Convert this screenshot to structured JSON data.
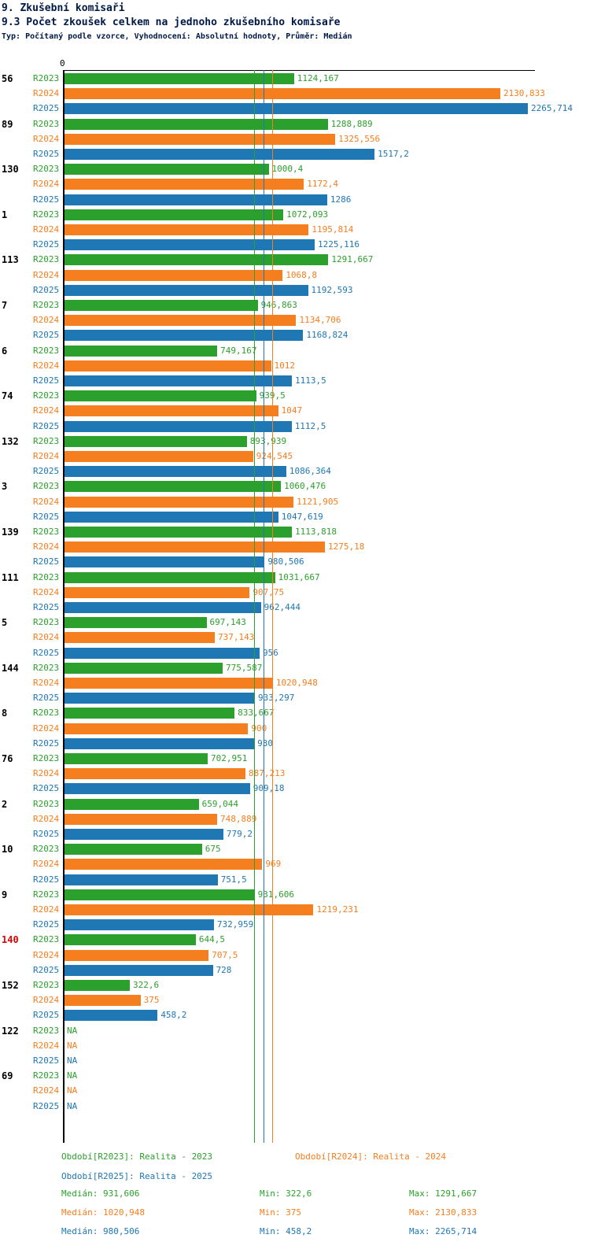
{
  "header": {
    "title": "9. Zkušební komisaři",
    "subtitle": "9.3 Počet zkoušek celkem na jednoho zkušebního komisaře",
    "meta": "Typ: Počítaný podle vzorce, Vyhodnocení: Absolutní hodnoty, Průměr: Medián"
  },
  "axis": {
    "zero_label": "0",
    "xlim": [
      0,
      2304
    ]
  },
  "colors": {
    "r2023": "#2ca02c",
    "r2024": "#f57e1e",
    "r2025": "#1f77b4",
    "highlight_red": "#e00000",
    "title_navy": "#001947"
  },
  "na_text": "NA",
  "chart_data": {
    "type": "bar",
    "orientation": "horizontal",
    "title": "9.3 Počet zkoušek celkem na jednoho zkušebního komisaře",
    "xlabel": "",
    "ylabel": "",
    "xlim": [
      0,
      2304
    ],
    "series_names": [
      "R2023",
      "R2024",
      "R2025"
    ],
    "groups": [
      {
        "label": "56",
        "red": false,
        "values": [
          1124.167,
          2130.833,
          2265.714
        ],
        "display": [
          "1124,167",
          "2130,833",
          "2265,714"
        ]
      },
      {
        "label": "89",
        "red": false,
        "values": [
          1288.889,
          1325.556,
          1517.2
        ],
        "display": [
          "1288,889",
          "1325,556",
          "1517,2"
        ]
      },
      {
        "label": "130",
        "red": false,
        "values": [
          1000.4,
          1172.4,
          1286
        ],
        "display": [
          "1000,4",
          "1172,4",
          "1286"
        ]
      },
      {
        "label": "1",
        "red": false,
        "values": [
          1072.093,
          1195.814,
          1225.116
        ],
        "display": [
          "1072,093",
          "1195,814",
          "1225,116"
        ]
      },
      {
        "label": "113",
        "red": false,
        "values": [
          1291.667,
          1068.8,
          1192.593
        ],
        "display": [
          "1291,667",
          "1068,8",
          "1192,593"
        ]
      },
      {
        "label": "7",
        "red": false,
        "values": [
          946.863,
          1134.706,
          1168.824
        ],
        "display": [
          "946,863",
          "1134,706",
          "1168,824"
        ]
      },
      {
        "label": "6",
        "red": false,
        "values": [
          749.167,
          1012,
          1113.5
        ],
        "display": [
          "749,167",
          "1012",
          "1113,5"
        ]
      },
      {
        "label": "74",
        "red": false,
        "values": [
          939.5,
          1047,
          1112.5
        ],
        "display": [
          "939,5",
          "1047",
          "1112,5"
        ]
      },
      {
        "label": "132",
        "red": false,
        "values": [
          893.939,
          924.545,
          1086.364
        ],
        "display": [
          "893,939",
          "924,545",
          "1086,364"
        ]
      },
      {
        "label": "3",
        "red": false,
        "values": [
          1060.476,
          1121.905,
          1047.619
        ],
        "display": [
          "1060,476",
          "1121,905",
          "1047,619"
        ]
      },
      {
        "label": "139",
        "red": false,
        "values": [
          1113.818,
          1275.18,
          980.506
        ],
        "display": [
          "1113,818",
          "1275,18",
          "980,506"
        ]
      },
      {
        "label": "111",
        "red": false,
        "values": [
          1031.667,
          907.75,
          962.444
        ],
        "display": [
          "1031,667",
          "907,75",
          "962,444"
        ]
      },
      {
        "label": "5",
        "red": false,
        "values": [
          697.143,
          737.143,
          956
        ],
        "display": [
          "697,143",
          "737,143",
          "956"
        ]
      },
      {
        "label": "144",
        "red": false,
        "values": [
          775.587,
          1020.948,
          933.297
        ],
        "display": [
          "775,587",
          "1020,948",
          "933,297"
        ]
      },
      {
        "label": "8",
        "red": false,
        "values": [
          833.667,
          900,
          930
        ],
        "display": [
          "833,667",
          "900",
          "930"
        ]
      },
      {
        "label": "76",
        "red": false,
        "values": [
          702.951,
          887.213,
          909.18
        ],
        "display": [
          "702,951",
          "887,213",
          "909,18"
        ]
      },
      {
        "label": "2",
        "red": false,
        "values": [
          659.044,
          748.889,
          779.2
        ],
        "display": [
          "659,044",
          "748,889",
          "779,2"
        ]
      },
      {
        "label": "10",
        "red": false,
        "values": [
          675,
          969,
          751.5
        ],
        "display": [
          "675",
          "969",
          "751,5"
        ]
      },
      {
        "label": "9",
        "red": false,
        "values": [
          931.606,
          1219.231,
          732.959
        ],
        "display": [
          "931,606",
          "1219,231",
          "732,959"
        ]
      },
      {
        "label": "140",
        "red": true,
        "values": [
          644.5,
          707.5,
          728
        ],
        "display": [
          "644,5",
          "707,5",
          "728"
        ]
      },
      {
        "label": "152",
        "red": false,
        "values": [
          322.6,
          375,
          458.2
        ],
        "display": [
          "322,6",
          "375",
          "458,2"
        ]
      },
      {
        "label": "122",
        "red": false,
        "values": [
          null,
          null,
          null
        ],
        "display": [
          "NA",
          "NA",
          "NA"
        ]
      },
      {
        "label": "69",
        "red": false,
        "values": [
          null,
          null,
          null
        ],
        "display": [
          "NA",
          "NA",
          "NA"
        ]
      }
    ],
    "medians": [
      {
        "series": "R2023",
        "value": 931.606
      },
      {
        "series": "R2024",
        "value": 1020.948
      },
      {
        "series": "R2025",
        "value": 980.506
      }
    ]
  },
  "legend": [
    {
      "label": "Období[R2023]: Realita - 2023"
    },
    {
      "label": "Období[R2024]: Realita - 2024"
    },
    {
      "label": "Období[R2025]: Realita - 2025"
    }
  ],
  "stats": [
    {
      "median": "Medián: 931,606",
      "min": "Min: 322,6",
      "max": "Max: 1291,667"
    },
    {
      "median": "Medián: 1020,948",
      "min": "Min: 375",
      "max": "Max: 2130,833"
    },
    {
      "median": "Medián: 980,506",
      "min": "Min: 458,2",
      "max": "Max: 2265,714"
    }
  ]
}
